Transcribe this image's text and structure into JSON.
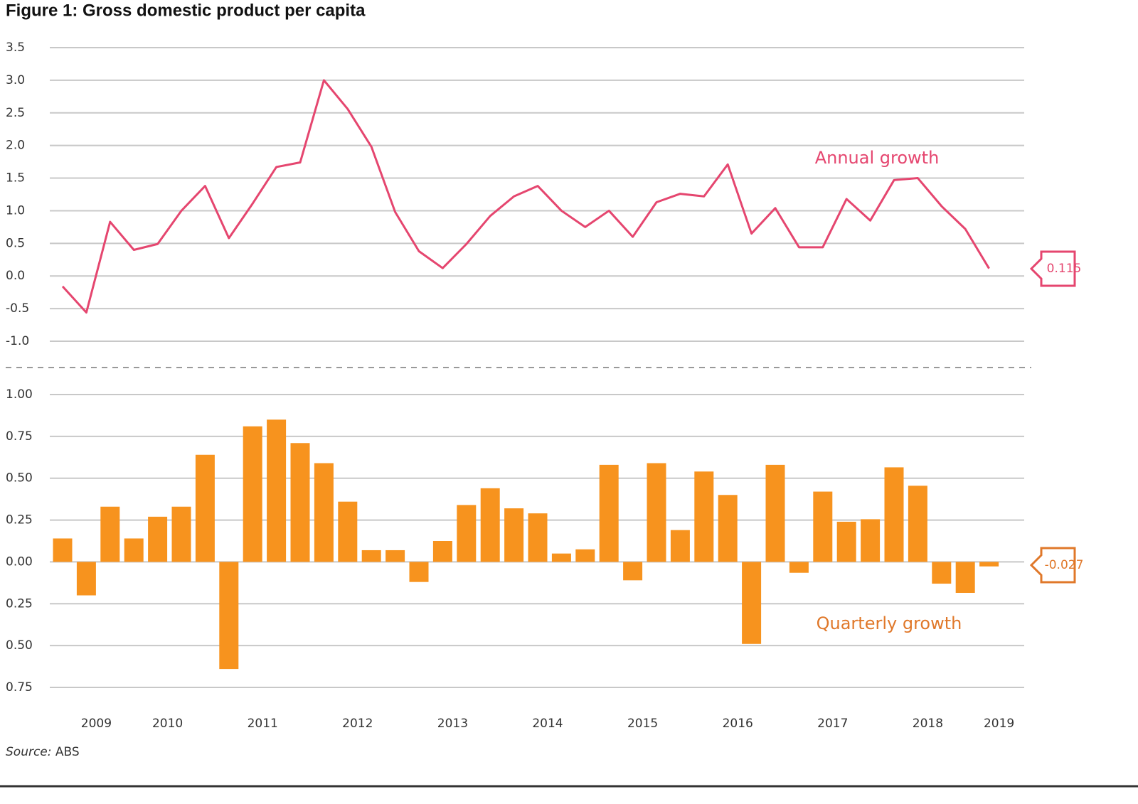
{
  "title": "Figure 1: Gross domestic product per capita",
  "source_label": "Source:",
  "source": "ABS",
  "chart_data": [
    {
      "type": "line",
      "name": "Annual growth",
      "annotation": "Annual growth",
      "color": "#e5466f",
      "grid": true,
      "categories": [
        null,
        "2009",
        null,
        null,
        "2010",
        null,
        null,
        null,
        "2011",
        null,
        null,
        null,
        "2012",
        null,
        null,
        null,
        "2013",
        null,
        null,
        null,
        "2014",
        null,
        null,
        null,
        "2015",
        null,
        null,
        null,
        "2016",
        null,
        null,
        null,
        "2017",
        null,
        null,
        null,
        "2018",
        null,
        null,
        "2019"
      ],
      "values": [
        -0.16,
        -0.56,
        0.83,
        0.4,
        0.49,
        1.0,
        1.38,
        0.58,
        1.11,
        1.67,
        1.74,
        3.0,
        2.56,
        1.98,
        0.98,
        0.38,
        0.12,
        0.49,
        0.92,
        1.22,
        1.38,
        1.0,
        0.75,
        1.0,
        0.6,
        1.13,
        1.26,
        1.22,
        1.71,
        0.65,
        1.04,
        0.44,
        0.44,
        1.18,
        0.85,
        1.47,
        1.5,
        1.07,
        0.72,
        0.115
      ],
      "ylim": [
        -1.0,
        3.5
      ],
      "yticks": [
        {
          "value": -1.0,
          "label": "-1.0"
        },
        -0.5,
        {
          "value": 0,
          "label": "0.0"
        },
        0.5,
        {
          "value": 1,
          "label": "1.0"
        },
        1.5,
        {
          "value": 2,
          "label": "2.0"
        },
        2.5,
        {
          "value": 3,
          "label": "3.0"
        },
        3.5
      ]
    },
    {
      "type": "bar",
      "name": "Quarterly growth",
      "annotation": "Quarterly growth",
      "color": "#f7931e",
      "label_color": "#e0782a",
      "grid": true,
      "values": [
        0.14,
        -0.2,
        0.33,
        0.14,
        0.27,
        0.33,
        0.64,
        -0.64,
        0.81,
        0.85,
        0.71,
        0.59,
        0.36,
        0.07,
        0.07,
        -0.12,
        0.125,
        0.34,
        0.44,
        0.32,
        0.29,
        0.05,
        0.075,
        0.58,
        -0.11,
        0.59,
        0.19,
        0.54,
        0.4,
        -0.49,
        0.58,
        -0.065,
        0.42,
        0.24,
        0.255,
        0.565,
        0.455,
        -0.13,
        -0.185,
        -0.027
      ],
      "ylim": [
        -0.75,
        1.0
      ],
      "yticks": [
        {
          "value": -0.75,
          "label": "0.75"
        },
        {
          "value": -0.5,
          "label": "0.50"
        },
        {
          "value": -0.25,
          "label": "0.25"
        },
        {
          "value": 0,
          "label": "0.00"
        },
        0.25,
        {
          "value": 0.5,
          "label": "0.50"
        },
        0.75,
        {
          "value": 1,
          "label": "1.00"
        }
      ]
    }
  ]
}
